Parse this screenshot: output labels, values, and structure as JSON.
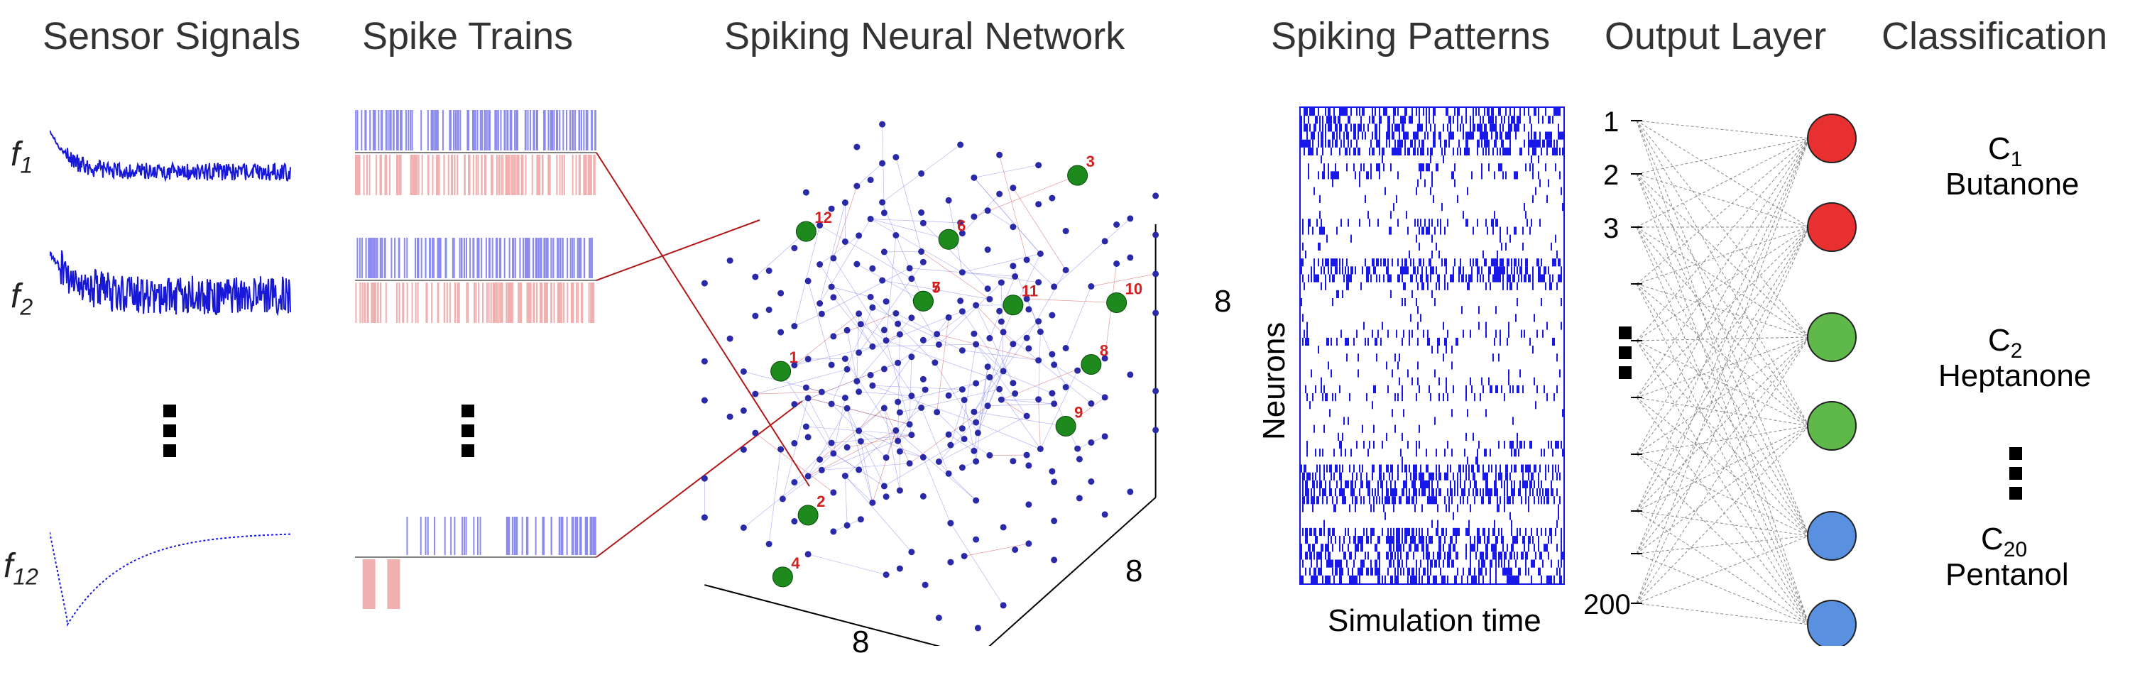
{
  "titles": {
    "sensor": "Sensor Signals",
    "spike": "Spike Trains",
    "snn": "Spiking Neural Network",
    "patterns": "Spiking Patterns",
    "output": "Output Layer",
    "classification": "Classification"
  },
  "sensor_labels": {
    "f1": "f",
    "f1_sub": "1",
    "f2": "f",
    "f2_sub": "2",
    "f12": "f",
    "f12_sub": "12"
  },
  "cube_dims": {
    "x": "8",
    "y": "8",
    "z": "8"
  },
  "raster": {
    "ylabel": "Neurons",
    "xlabel": "Simulation time"
  },
  "output_layer": {
    "n1": "1",
    "n2": "2",
    "n3": "3",
    "nlast": "200"
  },
  "classes": {
    "c1": "C",
    "c1_sub": "1",
    "c1_name": "Butanone",
    "c2": "C",
    "c2_sub": "2",
    "c2_name": "Heptanone",
    "c20": "C",
    "c20_sub": "20",
    "c20_name": "Pentanol"
  },
  "colors": {
    "signal": "#1818d8",
    "spike_blue": "#8a8af0",
    "spike_pink": "#f0b0b0",
    "net_node": "#2a2aa8",
    "net_input": "#1e8a1e",
    "net_edge_blue": "#7a7ae8",
    "net_edge_red": "#d04848",
    "raster": "#1818e8",
    "out_red": "#e83030",
    "out_green": "#5eb84a",
    "out_blue": "#5a90e0",
    "conn": "#b01818"
  }
}
